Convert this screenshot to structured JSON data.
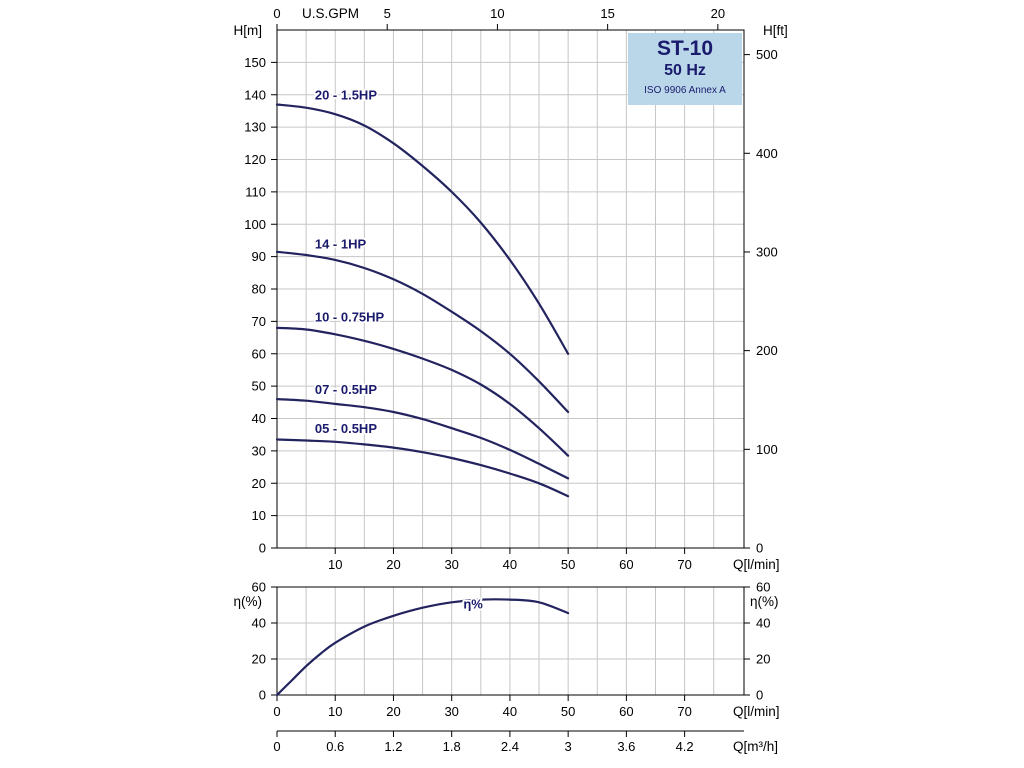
{
  "title_box": {
    "model": "ST-10",
    "frequency": "50 Hz",
    "standard": "ISO 9906 Annex A",
    "bg_color": "#b9d7e8",
    "text_color": "#1b1b6e"
  },
  "colors": {
    "curve": "#23235f",
    "curve_label": "#1b1b6e",
    "grid": "#c6c6c6",
    "axis": "#000000"
  },
  "chart_data": [
    {
      "type": "line",
      "name": "head-curves",
      "axis_labels": {
        "left": "H[m]",
        "right": "H[ft]",
        "top": "U.S.GPM",
        "bottom": "Q[l/min]"
      },
      "xlim_lmin": [
        0,
        80.2
      ],
      "ylim_m": [
        0,
        160
      ],
      "x_ticks_lmin": [
        10,
        20,
        30,
        40,
        50,
        60,
        70
      ],
      "x_ticks_gpm": [
        0,
        5,
        10,
        15,
        20
      ],
      "y_ticks_m": [
        0,
        10,
        20,
        30,
        40,
        50,
        60,
        70,
        80,
        90,
        100,
        110,
        120,
        130,
        140,
        150
      ],
      "y_ticks_ft": [
        0,
        100,
        200,
        300,
        400,
        500
      ],
      "x_lmin": [
        0,
        5,
        10,
        15,
        20,
        25,
        30,
        35,
        40,
        45,
        50
      ],
      "series": [
        {
          "name": "20 - 1.5HP",
          "values": [
            137,
            136,
            134,
            130.5,
            125,
            118,
            110,
            100.5,
            89,
            75.5,
            60
          ],
          "label_q": 6.5,
          "label_h": 138.5
        },
        {
          "name": "14 - 1HP",
          "values": [
            91.5,
            90.5,
            89,
            86.5,
            83,
            78.5,
            73,
            67,
            60,
            51.5,
            42
          ],
          "label_q": 6.5,
          "label_h": 92.5
        },
        {
          "name": "10 - 0.75HP",
          "values": [
            68,
            67.5,
            66,
            64,
            61.5,
            58.5,
            55,
            50.5,
            44.5,
            37,
            28.5
          ],
          "label_q": 6.5,
          "label_h": 70
        },
        {
          "name": "07 - 0.5HP",
          "values": [
            46,
            45.5,
            44.5,
            43.5,
            42,
            39.8,
            37,
            34,
            30.3,
            26,
            21.5
          ],
          "label_q": 6.5,
          "label_h": 47.5
        },
        {
          "name": "05 - 0.5HP",
          "values": [
            33.5,
            33.2,
            32.8,
            32,
            31,
            29.6,
            27.8,
            25.6,
            23,
            20,
            16
          ],
          "label_q": 6.5,
          "label_h": 35.5
        }
      ]
    },
    {
      "type": "line",
      "name": "efficiency-curve",
      "axis_labels": {
        "left": "η(%)",
        "right": "η(%)",
        "bottom": "Q[l/min]",
        "bottom2": "Q[m³/h]"
      },
      "ylim": [
        0,
        60
      ],
      "y_ticks": [
        0,
        20,
        40,
        60
      ],
      "x_ticks_lmin": [
        0,
        10,
        20,
        30,
        40,
        50,
        60,
        70
      ],
      "x_ticks_m3h": {
        "positions_lmin": [
          0,
          10,
          20,
          30,
          40,
          50,
          60,
          70
        ],
        "labels": [
          "0",
          "0.6",
          "1.2",
          "1.8",
          "2.4",
          "3",
          "3.6",
          "4.2"
        ]
      },
      "series": [
        {
          "name": "η%",
          "x": [
            0,
            2.5,
            5,
            7.5,
            10,
            15,
            20,
            25,
            30,
            35,
            40,
            45,
            50
          ],
          "values": [
            0,
            8,
            16,
            23,
            29,
            38,
            44,
            48.5,
            51.5,
            53,
            53,
            51.5,
            45.5
          ],
          "label_q": 32,
          "label_h": 48
        }
      ]
    }
  ]
}
